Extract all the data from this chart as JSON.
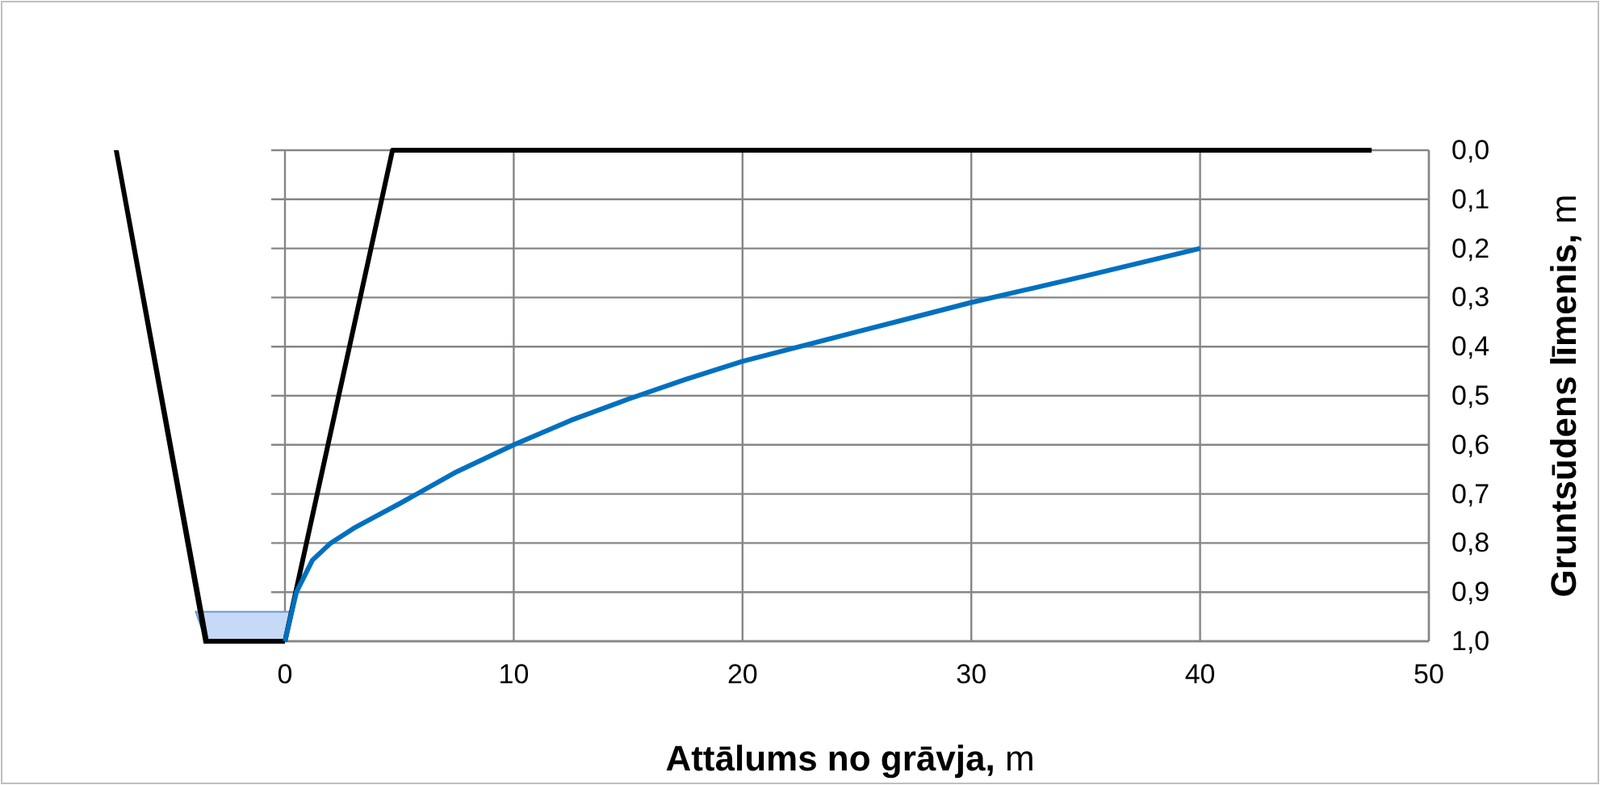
{
  "chart_data": {
    "type": "line",
    "xlabel": "Attālums no grāvja, m",
    "ylabel": "Gruntsūdens līmenis, m",
    "xlim": [
      -0.6,
      50
    ],
    "xticks": [
      0,
      10,
      20,
      30,
      40,
      50
    ],
    "ylim": [
      1.0,
      0.0
    ],
    "yticks": [
      {
        "value": 0.0,
        "label": "0,0"
      },
      {
        "value": 0.1,
        "label": "0,1"
      },
      {
        "value": 0.2,
        "label": "0,2"
      },
      {
        "value": 0.3,
        "label": "0,3"
      },
      {
        "value": 0.4,
        "label": "0,4"
      },
      {
        "value": 0.5,
        "label": "0,5"
      },
      {
        "value": 0.6,
        "label": "0,6"
      },
      {
        "value": 0.7,
        "label": "0,7"
      },
      {
        "value": 0.8,
        "label": "0,8"
      },
      {
        "value": 0.9,
        "label": "0,9"
      },
      {
        "value": 1.0,
        "label": "1,0"
      }
    ],
    "grid": true,
    "marker": "none",
    "line_style": "solid",
    "series": [
      {
        "color": "#000000",
        "x": [
          0,
          4.7,
          47.5
        ],
        "values": [
          1.0,
          0.0,
          0.0
        ]
      },
      {
        "color": "#0070c0",
        "x": [
          0,
          0.5,
          1.2,
          2,
          3,
          4,
          5,
          7.5,
          10,
          12.5,
          15,
          17.5,
          20,
          22.5,
          25,
          27.5,
          30,
          32.5,
          35,
          37.5,
          40
        ],
        "values": [
          1.0,
          0.9,
          0.835,
          0.8,
          0.77,
          0.745,
          0.72,
          0.655,
          0.6,
          0.55,
          0.507,
          0.467,
          0.43,
          0.4,
          0.37,
          0.34,
          0.31,
          0.283,
          0.256,
          0.228,
          0.2
        ]
      }
    ]
  }
}
